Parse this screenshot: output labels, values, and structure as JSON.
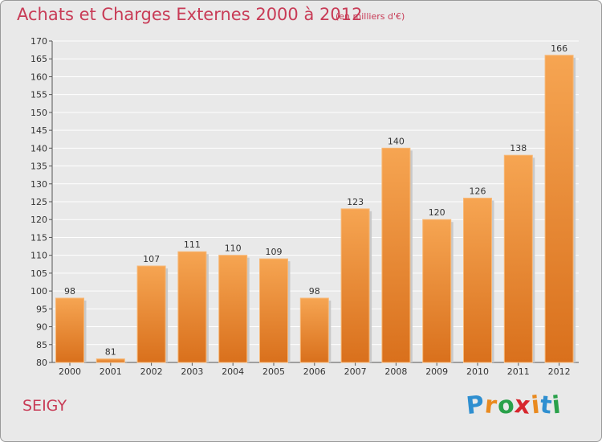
{
  "title": "Achats et Charges Externes 2000 à 2012",
  "subtitle": "(en milliers d'€)",
  "commune": "SEIGY",
  "brand": {
    "text": "Proxiti",
    "letters": [
      {
        "ch": "P",
        "color": "#2f8fd0"
      },
      {
        "ch": "r",
        "color": "#e98a1f"
      },
      {
        "ch": "o",
        "color": "#2aa14a"
      },
      {
        "ch": "x",
        "color": "#d7262d"
      },
      {
        "ch": "i",
        "color": "#e98a1f"
      },
      {
        "ch": "t",
        "color": "#2f8fd0"
      },
      {
        "ch": "i",
        "color": "#2aa14a"
      }
    ]
  },
  "colors": {
    "title": "#c83b56",
    "bar_top": "#f6a552",
    "bar_bottom": "#d9701c",
    "grid": "#ffffff",
    "background": "#e9e9e9",
    "text": "#333333"
  },
  "chart_data": {
    "type": "bar",
    "categories": [
      "2000",
      "2001",
      "2002",
      "2003",
      "2004",
      "2005",
      "2006",
      "2007",
      "2008",
      "2009",
      "2010",
      "2011",
      "2012"
    ],
    "values": [
      98,
      81,
      107,
      111,
      110,
      109,
      98,
      123,
      140,
      120,
      126,
      138,
      166
    ],
    "title": "Achats et Charges Externes 2000 à 2012",
    "subtitle": "(en milliers d'€)",
    "ylim": [
      80,
      170
    ],
    "yticks": [
      80,
      85,
      90,
      95,
      100,
      105,
      110,
      115,
      120,
      125,
      130,
      135,
      140,
      145,
      150,
      155,
      160,
      165,
      170
    ],
    "grid": true,
    "data_labels": true
  }
}
